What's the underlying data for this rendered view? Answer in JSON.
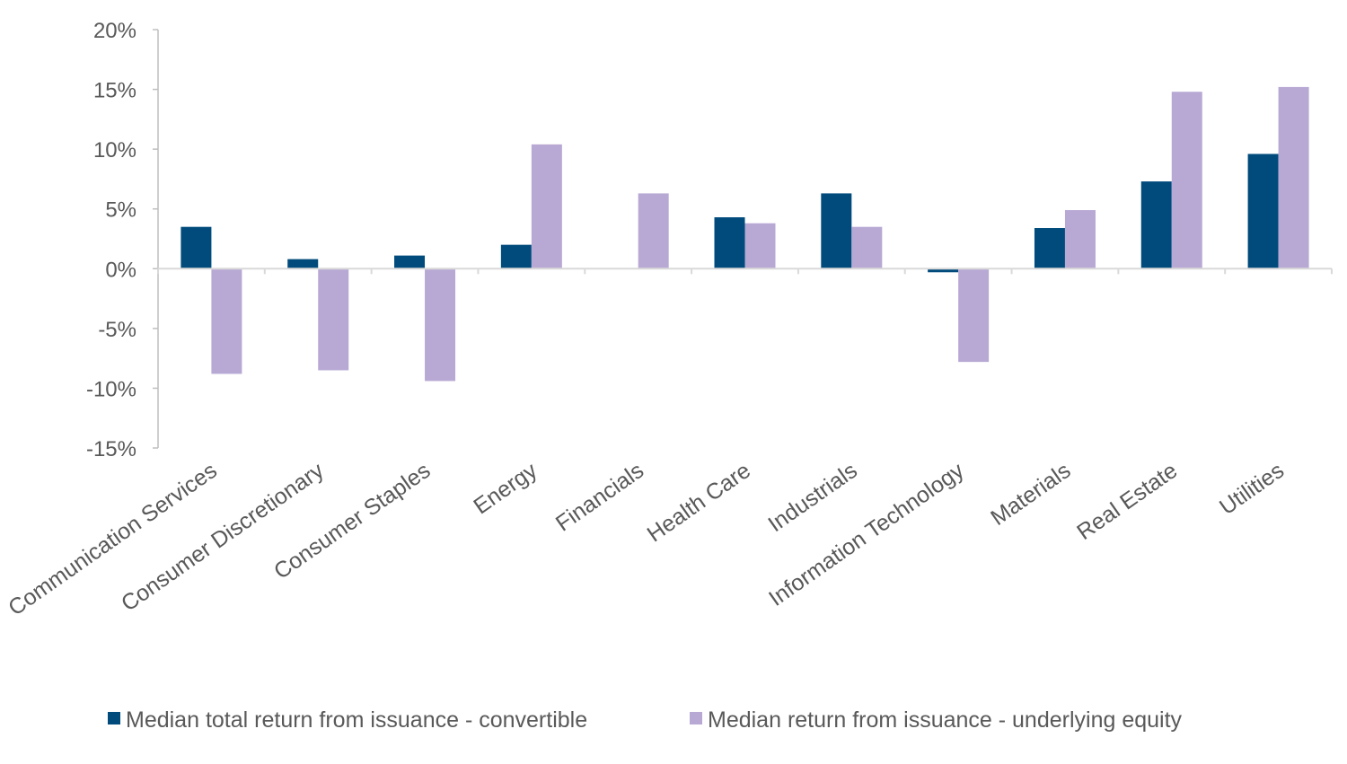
{
  "chart_data": {
    "type": "bar",
    "title": "",
    "xlabel": "",
    "ylabel": "",
    "ylim": [
      -15,
      20
    ],
    "ytick_step": 5,
    "ytick_suffix": "%",
    "grid": false,
    "legend_position": "bottom",
    "categories": [
      "Communication Services",
      "Consumer Discretionary",
      "Consumer Staples",
      "Energy",
      "Financials",
      "Health Care",
      "Industrials",
      "Information Technology",
      "Materials",
      "Real Estate",
      "Utilities"
    ],
    "series": [
      {
        "name": "Median total return from issuance - convertible",
        "color": "#004b7c",
        "values": [
          3.5,
          0.8,
          1.1,
          2.0,
          0.0,
          4.3,
          6.3,
          -0.3,
          3.4,
          7.3,
          9.6
        ]
      },
      {
        "name": "Median return from issuance - underlying equity",
        "color": "#b8a9d4",
        "values": [
          -8.8,
          -8.5,
          -9.4,
          10.4,
          6.3,
          3.8,
          3.5,
          -7.8,
          4.9,
          14.8,
          15.2
        ]
      }
    ]
  }
}
